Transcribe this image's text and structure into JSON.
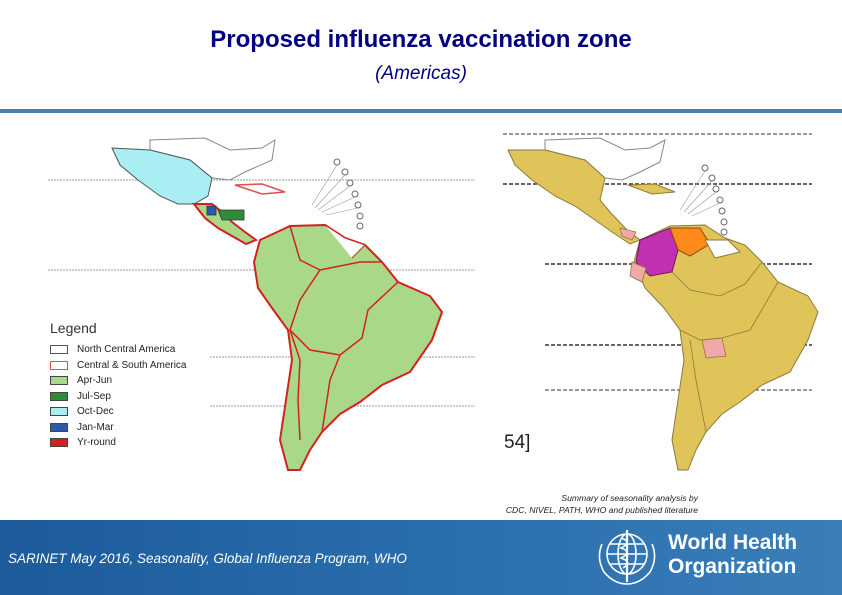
{
  "slide": {
    "title": "Proposed influenza vaccination zone",
    "subtitle": "(Americas)"
  },
  "legend": {
    "title": "Legend",
    "items": [
      {
        "label": "North Central America",
        "color": "#ffffff",
        "border": "#555555"
      },
      {
        "label": "Central & South America",
        "color": "#ffffff",
        "border": "#e05050"
      },
      {
        "label": "Apr-Jun",
        "color": "#a8d888"
      },
      {
        "label": "Jul-Sep",
        "color": "#2e8b3a"
      },
      {
        "label": "Oct-Dec",
        "color": "#a8eef2"
      },
      {
        "label": "Jan-Mar",
        "color": "#2a5aa8"
      },
      {
        "label": "Yr-round",
        "color": "#d42020"
      }
    ]
  },
  "right_map": {
    "label": "54]",
    "colors": {
      "base": "#e0c45a",
      "magenta": "#c030b0",
      "orange": "#ff8a1a",
      "pink": "#f2a8a8"
    }
  },
  "source_note": {
    "line1": "Summary of seasonality analysis by",
    "line2": "CDC, NIVEL, PATH, WHO and published literature"
  },
  "footer": {
    "text": "SARINET May 2016, Seasonality, Global Influenza Program, WHO",
    "org_line1": "World Health",
    "org_line2": "Organization",
    "emblem": "who-emblem-icon"
  }
}
